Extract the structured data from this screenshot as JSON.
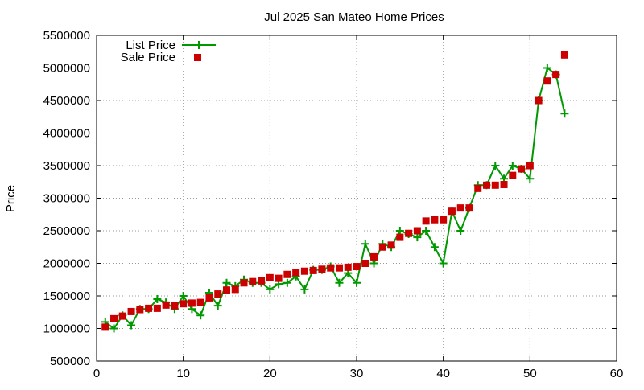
{
  "chart_data": {
    "type": "line",
    "title": "Jul 2025 San Mateo Home Prices",
    "xlabel": "",
    "ylabel": "Price",
    "xlim": [
      0,
      60
    ],
    "ylim": [
      500000,
      5500000
    ],
    "xticks": [
      0,
      10,
      20,
      30,
      40,
      50,
      60
    ],
    "yticks": [
      500000,
      1000000,
      1500000,
      2000000,
      2500000,
      3000000,
      3500000,
      4000000,
      4500000,
      5000000,
      5500000
    ],
    "grid": true,
    "legend_position": "top-left",
    "series": [
      {
        "name": "List Price",
        "style": "line-plus",
        "color": "#009900",
        "x": [
          1,
          2,
          3,
          4,
          5,
          6,
          7,
          8,
          9,
          10,
          11,
          12,
          13,
          14,
          15,
          16,
          17,
          18,
          19,
          20,
          21,
          22,
          23,
          24,
          25,
          26,
          27,
          28,
          29,
          30,
          31,
          32,
          33,
          34,
          35,
          36,
          37,
          38,
          39,
          40,
          41,
          42,
          43,
          44,
          45,
          46,
          47,
          48,
          49,
          50,
          51,
          52,
          53,
          54
        ],
        "values": [
          1100000,
          1000000,
          1200000,
          1050000,
          1300000,
          1300000,
          1450000,
          1400000,
          1300000,
          1500000,
          1300000,
          1200000,
          1550000,
          1350000,
          1700000,
          1650000,
          1750000,
          1700000,
          1700000,
          1600000,
          1680000,
          1700000,
          1800000,
          1600000,
          1900000,
          1900000,
          1950000,
          1700000,
          1850000,
          1700000,
          2300000,
          2000000,
          2300000,
          2250000,
          2500000,
          2450000,
          2400000,
          2500000,
          2250000,
          2000000,
          2800000,
          2500000,
          2850000,
          3200000,
          3200000,
          3500000,
          3300000,
          3500000,
          3450000,
          3300000,
          4500000,
          5000000,
          4900000,
          4300000
        ]
      },
      {
        "name": "Sale Price",
        "style": "square-marker",
        "color": "#cc0000",
        "x": [
          1,
          2,
          3,
          4,
          5,
          6,
          7,
          8,
          9,
          10,
          11,
          12,
          13,
          14,
          15,
          16,
          17,
          18,
          19,
          20,
          21,
          22,
          23,
          24,
          25,
          26,
          27,
          28,
          29,
          30,
          31,
          32,
          33,
          34,
          35,
          36,
          37,
          38,
          39,
          40,
          41,
          42,
          43,
          44,
          45,
          46,
          47,
          48,
          49,
          50,
          51,
          52,
          53,
          54
        ],
        "values": [
          1020000,
          1150000,
          1190000,
          1260000,
          1290000,
          1310000,
          1310000,
          1360000,
          1350000,
          1380000,
          1390000,
          1400000,
          1470000,
          1530000,
          1590000,
          1600000,
          1700000,
          1720000,
          1730000,
          1780000,
          1770000,
          1830000,
          1860000,
          1880000,
          1890000,
          1910000,
          1930000,
          1930000,
          1940000,
          1950000,
          2000000,
          2100000,
          2250000,
          2280000,
          2400000,
          2460000,
          2500000,
          2650000,
          2670000,
          2670000,
          2800000,
          2850000,
          2850000,
          3150000,
          3200000,
          3200000,
          3210000,
          3350000,
          3450000,
          3500000,
          4500000,
          4800000,
          4900000,
          5200000
        ]
      }
    ]
  }
}
